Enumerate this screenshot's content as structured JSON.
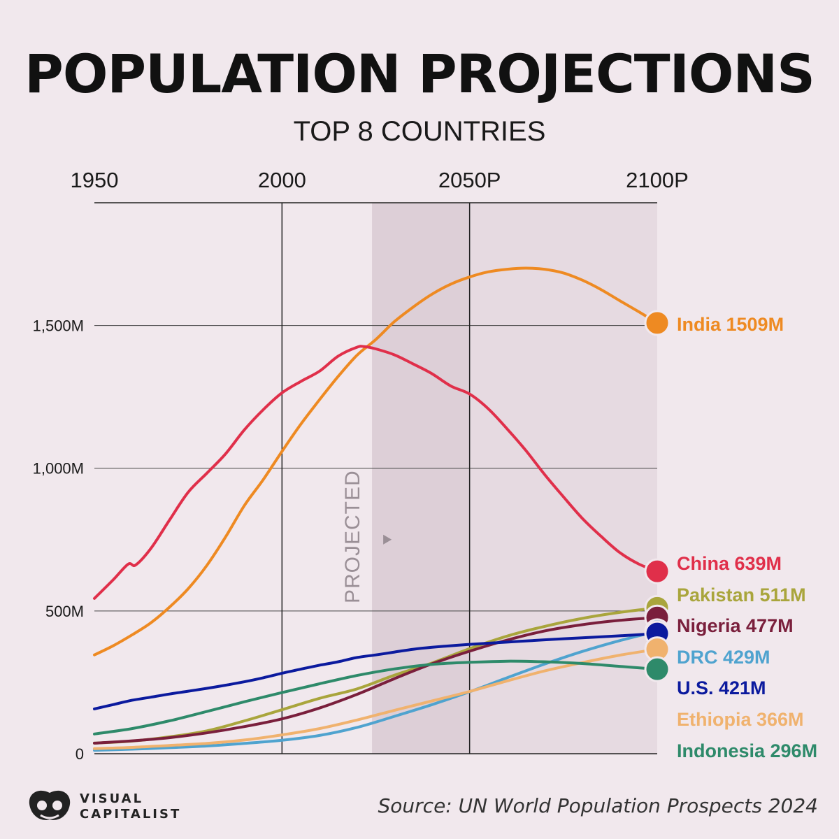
{
  "header": {
    "title": "POPULATION PROJECTIONS",
    "subtitle": "TOP 8 COUNTRIES"
  },
  "footer": {
    "source": "Source: UN World Population Prospects 2024",
    "logo_line1": "VISUAL",
    "logo_line2": "CAPITALIST"
  },
  "chart_data": {
    "type": "line",
    "title": "POPULATION PROJECTIONS",
    "subtitle": "TOP 8 COUNTRIES",
    "xlabel": "",
    "ylabel": "",
    "x_ticks": [
      {
        "value": 1950,
        "label": "1950"
      },
      {
        "value": 2000,
        "label": "2000"
      },
      {
        "value": 2050,
        "label": "2050P"
      },
      {
        "value": 2100,
        "label": "2100P"
      }
    ],
    "y_ticks": [
      {
        "value": 0,
        "label": "0"
      },
      {
        "value": 500,
        "label": "500M"
      },
      {
        "value": 1000,
        "label": "1,000M"
      },
      {
        "value": 1500,
        "label": "1,500M"
      }
    ],
    "xlim": [
      1950,
      2100
    ],
    "ylim": [
      0,
      1930
    ],
    "projected_range": [
      2024,
      2100
    ],
    "projected_label": "PROJECTED",
    "grid": "gridlines at 2000, 2050 and 500M, 1,000M, 1,500M",
    "legend_placement": "right",
    "series": [
      {
        "name": "India",
        "label": "India 1509M",
        "color": "#ee8a22",
        "points": [
          [
            1950,
            346
          ],
          [
            1955,
            378
          ],
          [
            1960,
            416
          ],
          [
            1965,
            458
          ],
          [
            1970,
            513
          ],
          [
            1975,
            578
          ],
          [
            1980,
            660
          ],
          [
            1985,
            760
          ],
          [
            1990,
            870
          ],
          [
            1995,
            960
          ],
          [
            2000,
            1059
          ],
          [
            2005,
            1154
          ],
          [
            2010,
            1240
          ],
          [
            2015,
            1322
          ],
          [
            2020,
            1396
          ],
          [
            2025,
            1451
          ],
          [
            2030,
            1514
          ],
          [
            2035,
            1565
          ],
          [
            2040,
            1610
          ],
          [
            2045,
            1645
          ],
          [
            2050,
            1670
          ],
          [
            2055,
            1688
          ],
          [
            2060,
            1697
          ],
          [
            2065,
            1701
          ],
          [
            2070,
            1697
          ],
          [
            2075,
            1684
          ],
          [
            2080,
            1659
          ],
          [
            2085,
            1626
          ],
          [
            2090,
            1587
          ],
          [
            2095,
            1549
          ],
          [
            2100,
            1509
          ]
        ]
      },
      {
        "name": "China",
        "label": "China 639M",
        "color": "#e02f4a",
        "points": [
          [
            1950,
            544
          ],
          [
            1955,
            609
          ],
          [
            1959,
            664
          ],
          [
            1961,
            661
          ],
          [
            1965,
            718
          ],
          [
            1970,
            818
          ],
          [
            1975,
            916
          ],
          [
            1980,
            983
          ],
          [
            1985,
            1051
          ],
          [
            1990,
            1135
          ],
          [
            1995,
            1205
          ],
          [
            2000,
            1264
          ],
          [
            2005,
            1304
          ],
          [
            2010,
            1340
          ],
          [
            2015,
            1393
          ],
          [
            2020,
            1424
          ],
          [
            2022,
            1426
          ],
          [
            2025,
            1418
          ],
          [
            2030,
            1397
          ],
          [
            2035,
            1365
          ],
          [
            2040,
            1331
          ],
          [
            2045,
            1288
          ],
          [
            2050,
            1260
          ],
          [
            2055,
            1208
          ],
          [
            2060,
            1138
          ],
          [
            2065,
            1062
          ],
          [
            2070,
            978
          ],
          [
            2075,
            900
          ],
          [
            2080,
            825
          ],
          [
            2085,
            762
          ],
          [
            2090,
            705
          ],
          [
            2095,
            665
          ],
          [
            2100,
            639
          ]
        ]
      },
      {
        "name": "Pakistan",
        "label": "Pakistan 511M",
        "color": "#a9a53c",
        "points": [
          [
            1950,
            37
          ],
          [
            1960,
            44
          ],
          [
            1970,
            59
          ],
          [
            1980,
            80
          ],
          [
            1990,
            115
          ],
          [
            2000,
            154
          ],
          [
            2010,
            194
          ],
          [
            2020,
            227
          ],
          [
            2030,
            275
          ],
          [
            2040,
            318
          ],
          [
            2050,
            368
          ],
          [
            2060,
            412
          ],
          [
            2070,
            446
          ],
          [
            2080,
            474
          ],
          [
            2090,
            495
          ],
          [
            2100,
            511
          ]
        ]
      },
      {
        "name": "Nigeria",
        "label": "Nigeria 477M",
        "color": "#7a1f3c",
        "points": [
          [
            1950,
            37
          ],
          [
            1960,
            45
          ],
          [
            1970,
            56
          ],
          [
            1980,
            73
          ],
          [
            1990,
            95
          ],
          [
            2000,
            122
          ],
          [
            2010,
            160
          ],
          [
            2020,
            208
          ],
          [
            2030,
            263
          ],
          [
            2040,
            315
          ],
          [
            2050,
            359
          ],
          [
            2060,
            398
          ],
          [
            2070,
            430
          ],
          [
            2080,
            452
          ],
          [
            2090,
            467
          ],
          [
            2100,
            477
          ]
        ]
      },
      {
        "name": "DRC",
        "label": "DRC 429M",
        "color": "#4fa3cf",
        "points": [
          [
            1950,
            12
          ],
          [
            1960,
            16
          ],
          [
            1970,
            21
          ],
          [
            1980,
            27
          ],
          [
            1990,
            36
          ],
          [
            2000,
            47
          ],
          [
            2010,
            64
          ],
          [
            2020,
            92
          ],
          [
            2030,
            131
          ],
          [
            2040,
            172
          ],
          [
            2050,
            217
          ],
          [
            2060,
            266
          ],
          [
            2070,
            314
          ],
          [
            2080,
            358
          ],
          [
            2090,
            396
          ],
          [
            2100,
            429
          ]
        ]
      },
      {
        "name": "U.S.",
        "label": "U.S. 421M",
        "color": "#0b1a9e",
        "points": [
          [
            1950,
            157
          ],
          [
            1955,
            172
          ],
          [
            1960,
            187
          ],
          [
            1965,
            198
          ],
          [
            1970,
            209
          ],
          [
            1975,
            219
          ],
          [
            1980,
            229
          ],
          [
            1985,
            240
          ],
          [
            1990,
            252
          ],
          [
            1995,
            266
          ],
          [
            2000,
            282
          ],
          [
            2005,
            296
          ],
          [
            2010,
            310
          ],
          [
            2015,
            322
          ],
          [
            2020,
            337
          ],
          [
            2025,
            346
          ],
          [
            2030,
            356
          ],
          [
            2035,
            366
          ],
          [
            2040,
            373
          ],
          [
            2050,
            383
          ],
          [
            2060,
            391
          ],
          [
            2070,
            399
          ],
          [
            2080,
            406
          ],
          [
            2090,
            413
          ],
          [
            2100,
            421
          ]
        ]
      },
      {
        "name": "Ethiopia",
        "label": "Ethiopia 366M",
        "color": "#f0b26e",
        "points": [
          [
            1950,
            18
          ],
          [
            1960,
            22
          ],
          [
            1970,
            29
          ],
          [
            1980,
            36
          ],
          [
            1990,
            48
          ],
          [
            2000,
            66
          ],
          [
            2010,
            88
          ],
          [
            2020,
            118
          ],
          [
            2030,
            152
          ],
          [
            2040,
            185
          ],
          [
            2050,
            218
          ],
          [
            2060,
            255
          ],
          [
            2070,
            290
          ],
          [
            2080,
            319
          ],
          [
            2090,
            345
          ],
          [
            2100,
            366
          ]
        ]
      },
      {
        "name": "Indonesia",
        "label": "Indonesia 296M",
        "color": "#2e8a6a",
        "points": [
          [
            1950,
            69
          ],
          [
            1960,
            88
          ],
          [
            1970,
            115
          ],
          [
            1980,
            148
          ],
          [
            1990,
            182
          ],
          [
            2000,
            214
          ],
          [
            2010,
            245
          ],
          [
            2020,
            274
          ],
          [
            2030,
            297
          ],
          [
            2040,
            313
          ],
          [
            2050,
            320
          ],
          [
            2060,
            324
          ],
          [
            2070,
            322
          ],
          [
            2080,
            316
          ],
          [
            2090,
            306
          ],
          [
            2100,
            296
          ]
        ]
      }
    ]
  }
}
